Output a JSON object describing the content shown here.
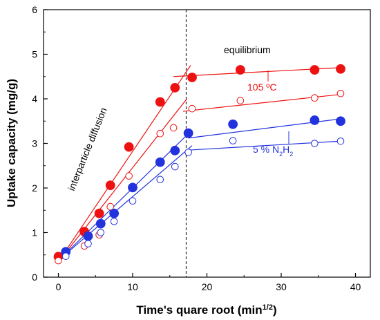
{
  "chart_data": {
    "type": "scatter",
    "xlabel": "Time's quare root (min",
    "xlabel_sup": "1/2",
    "xlabel_end": ")",
    "ylabel": "Uptake capacity (mg/g)",
    "xlim": [
      -2,
      42
    ],
    "ylim": [
      0,
      6
    ],
    "xticks": [
      0,
      10,
      20,
      30,
      40
    ],
    "yticks": [
      0,
      1,
      2,
      3,
      4,
      5,
      6
    ],
    "colors": {
      "red": "#ee1111",
      "blue": "#2233dd"
    },
    "series": [
      {
        "color": "#ee1111",
        "marker": "filled",
        "x": [
          0,
          3.5,
          5.5,
          7,
          9.5,
          13.7,
          15.7,
          18,
          24.5,
          34.5,
          38
        ],
        "y": [
          0.46,
          1.02,
          1.43,
          2.06,
          2.92,
          3.93,
          4.25,
          4.48,
          4.65,
          4.65,
          4.67
        ],
        "fit1": [
          [
            -0.2,
            0.3
          ],
          [
            17.8,
            4.75
          ]
        ],
        "fit2": [
          [
            15.5,
            4.5
          ],
          [
            38,
            4.7
          ]
        ]
      },
      {
        "color": "#ee1111",
        "marker": "open",
        "x": [
          0,
          3.5,
          5.5,
          7,
          9.5,
          13.7,
          15.5,
          18,
          24.5,
          34.5,
          38
        ],
        "y": [
          0.37,
          0.7,
          0.95,
          1.58,
          2.27,
          3.22,
          3.35,
          3.78,
          3.96,
          4.02,
          4.12
        ],
        "fit1": [
          [
            -0.2,
            0.3
          ],
          [
            17.3,
            4.0
          ]
        ],
        "fit2": [
          [
            16.8,
            3.72
          ],
          [
            38,
            4.1
          ]
        ]
      },
      {
        "color": "#2233dd",
        "marker": "filled",
        "x": [
          1,
          4,
          5.7,
          7.5,
          10,
          13.7,
          15.7,
          17.5,
          23.5,
          34.5,
          38
        ],
        "y": [
          0.57,
          0.92,
          1.2,
          1.43,
          2.01,
          2.58,
          2.84,
          3.23,
          3.43,
          3.52,
          3.5
        ],
        "fit1": [
          [
            0.3,
            0.42
          ],
          [
            18.0,
            3.3
          ]
        ],
        "fit2": [
          [
            17.5,
            3.12
          ],
          [
            38,
            3.55
          ]
        ]
      },
      {
        "color": "#2233dd",
        "marker": "open",
        "x": [
          1,
          4,
          5.7,
          7.5,
          10,
          13.7,
          15.7,
          17.5,
          23.5,
          34.5,
          38
        ],
        "y": [
          0.47,
          0.75,
          1.0,
          1.25,
          1.71,
          2.19,
          2.48,
          2.8,
          3.06,
          3.0,
          3.05
        ],
        "fit1": [
          [
            0.3,
            0.42
          ],
          [
            18.0,
            2.95
          ]
        ],
        "fit2": [
          [
            17.5,
            2.85
          ],
          [
            38,
            3.05
          ]
        ]
      }
    ],
    "vline_x": 17.2,
    "annotations": {
      "equilibrium": "equilibrium",
      "diffusion": "interparticle diffusion",
      "temp": "105 ºC",
      "gas_prefix": "5 % N",
      "gas_sub1": "2",
      "gas_mid": "H",
      "gas_sub2": "2"
    }
  }
}
